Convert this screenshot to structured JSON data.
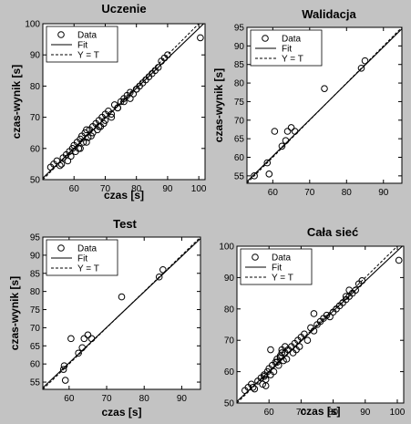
{
  "chart_data": [
    {
      "type": "scatter",
      "title": "Uczenie",
      "xlabel": "czas [s]",
      "ylabel": "czas-wynik [s]",
      "xlim": [
        50,
        102
      ],
      "ylim": [
        50,
        100
      ],
      "xticks": [
        60,
        70,
        80,
        90,
        100
      ],
      "yticks": [
        50,
        60,
        70,
        80,
        90,
        100
      ],
      "legend": {
        "position": "top-left",
        "entries": [
          "Data",
          "Fit",
          "Y = T"
        ]
      },
      "grid": false,
      "fit": {
        "a": 2.5,
        "b": 0.96
      },
      "series": [
        {
          "name": "Data",
          "x": [
            52.5,
            53.5,
            54.5,
            55.5,
            56.5,
            57.5,
            58,
            58.5,
            59,
            59.5,
            60,
            60.5,
            61,
            61.5,
            62,
            62.5,
            63,
            63.5,
            64,
            64.5,
            65,
            65.5,
            66,
            67,
            67.5,
            68,
            68.5,
            69,
            69.5,
            70,
            71,
            72,
            73,
            74,
            75,
            76,
            77,
            78,
            79,
            80,
            81,
            82,
            83,
            84,
            85,
            86,
            87,
            88,
            89,
            90,
            100.5,
            56,
            62,
            64,
            66,
            68,
            70,
            72,
            74,
            76,
            78,
            80
          ],
          "y": [
            54,
            55,
            56,
            54.5,
            57,
            58,
            56,
            59,
            57.5,
            60,
            61,
            59,
            62,
            60,
            63,
            64,
            62,
            65,
            66,
            63.5,
            66,
            64,
            67,
            68,
            66,
            69,
            67,
            70,
            68,
            71,
            72,
            70,
            74,
            73,
            75,
            76,
            77,
            78,
            77.5,
            79,
            80,
            81,
            82,
            83,
            84,
            85,
            86,
            88,
            89,
            90,
            95.5,
            55,
            60,
            62,
            65,
            67,
            69,
            71,
            73,
            75,
            76,
            79
          ]
        }
      ]
    },
    {
      "type": "scatter",
      "title": "Walidacja",
      "xlabel": "",
      "ylabel": "czas-wynik [s]",
      "xlim": [
        53,
        95
      ],
      "ylim": [
        53,
        95
      ],
      "xticks": [
        60,
        70,
        80,
        90
      ],
      "yticks": [
        55,
        60,
        65,
        70,
        75,
        80,
        85,
        90,
        95
      ],
      "legend": {
        "position": "top-left",
        "entries": [
          "Data",
          "Fit",
          "Y = T"
        ]
      },
      "grid": false,
      "fit": {
        "a": 1.5,
        "b": 0.98
      },
      "series": [
        {
          "name": "Data",
          "x": [
            55,
            58.5,
            59,
            60.5,
            62.5,
            63.5,
            64,
            65,
            66,
            74,
            84,
            85
          ],
          "y": [
            55,
            58.5,
            55.5,
            67,
            63,
            64.5,
            67,
            68,
            67,
            78.5,
            84,
            86
          ]
        }
      ]
    },
    {
      "type": "scatter",
      "title": "Test",
      "xlabel": "czas [s]",
      "ylabel": "czas-wynik [s]",
      "xlim": [
        53,
        95
      ],
      "ylim": [
        53,
        95
      ],
      "xticks": [
        60,
        70,
        80,
        90
      ],
      "yticks": [
        55,
        60,
        65,
        70,
        75,
        80,
        85,
        90,
        95
      ],
      "legend": {
        "position": "top-left",
        "entries": [
          "Data",
          "Fit",
          "Y = T"
        ]
      },
      "grid": false,
      "fit": {
        "a": 1.5,
        "b": 0.98
      },
      "series": [
        {
          "name": "Data",
          "x": [
            58.5,
            59,
            60.5,
            62.5,
            63.5,
            64,
            65,
            66,
            74,
            84,
            85,
            58.7
          ],
          "y": [
            58.5,
            55.5,
            67,
            63,
            64.5,
            67,
            68,
            67,
            78.5,
            84,
            86,
            59.5
          ]
        }
      ]
    },
    {
      "type": "scatter",
      "title": "Cała sieć",
      "xlabel": "czas [s]",
      "ylabel": "",
      "xlim": [
        50,
        102
      ],
      "ylim": [
        50,
        100
      ],
      "xticks": [
        60,
        70,
        80,
        90,
        100
      ],
      "yticks": [
        50,
        60,
        70,
        80,
        90,
        100
      ],
      "legend": {
        "position": "top-left",
        "entries": [
          "Data",
          "Fit",
          "Y = T"
        ]
      },
      "grid": false,
      "fit": {
        "a": 2.5,
        "b": 0.96
      },
      "series": [
        {
          "name": "Data",
          "x": [
            52.5,
            53.5,
            54.5,
            55.5,
            56.5,
            57.5,
            58,
            58.5,
            59,
            59.5,
            60,
            60.5,
            61,
            61.5,
            62,
            62.5,
            63,
            63.5,
            64,
            64.5,
            65,
            65.5,
            66,
            67,
            67.5,
            68,
            68.5,
            69,
            69.5,
            70,
            71,
            72,
            73,
            74,
            75,
            76,
            77,
            78,
            79,
            80,
            81,
            82,
            83,
            84,
            85,
            86,
            87,
            88,
            89,
            100.5,
            55,
            58.5,
            59,
            60.5,
            62.5,
            63.5,
            64,
            65,
            66,
            74,
            84,
            85
          ],
          "y": [
            54,
            55,
            56,
            54.5,
            57,
            58,
            56,
            59,
            57.5,
            60,
            61,
            59,
            62,
            60,
            63,
            64,
            62,
            65,
            66,
            63.5,
            66,
            64,
            67,
            68,
            66,
            69,
            67,
            70,
            68,
            71,
            72,
            70,
            74,
            73,
            75,
            76,
            77,
            78,
            77.5,
            79,
            80,
            81,
            82,
            83,
            84,
            85,
            86,
            88,
            89,
            95.5,
            55,
            58.5,
            55.5,
            67,
            63,
            64.5,
            67,
            68,
            67,
            78.5,
            84,
            86
          ]
        }
      ]
    }
  ]
}
